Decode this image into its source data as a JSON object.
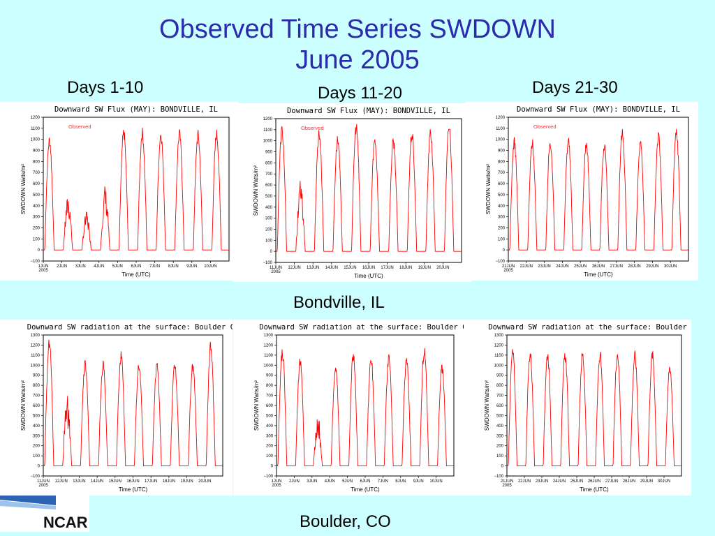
{
  "slide": {
    "title_line1": "Observed Time Series SWDOWN",
    "title_line2": "June 2005",
    "col_labels": [
      "Days 1-10",
      "Days 11-20",
      "Days 21-30"
    ],
    "site_bondville": "Bondville, IL",
    "site_boulder": "Boulder, CO",
    "logo_text": "NCAR",
    "colors": {
      "title": "#2b2bab",
      "background": "#ccffff",
      "series": "#ff0000"
    }
  },
  "chart_data": [
    {
      "type": "line",
      "title": "Downward SW Flux (MAY): BONDVILLE, IL",
      "xlabel": "Time (UTC)",
      "ylabel": "SWDOWN  Watts/m²",
      "legend": "Observed",
      "x": [
        "1JUN\n2005",
        "2JUN",
        "3JUN",
        "4JUN",
        "5JUN",
        "6JUN",
        "7JUN",
        "8JUN",
        "9JUN",
        "10JUN"
      ],
      "ylim": [
        -100,
        1200
      ],
      "yticks": [
        -100,
        0,
        100,
        200,
        300,
        400,
        500,
        600,
        700,
        800,
        900,
        1000,
        1100,
        1200
      ],
      "daily_peaks": [
        1040,
        540,
        380,
        640,
        1110,
        1110,
        1100,
        1100,
        1090,
        1100
      ]
    },
    {
      "type": "line",
      "title": "Downward SW Flux (MAY): BONDVILLE, IL",
      "xlabel": "Time (UTC)",
      "ylabel": "SWDOWN  Watts/m²",
      "legend": "Observed",
      "x": [
        "11JUN\n2005",
        "12JUN",
        "13JUN",
        "14JUN",
        "15JUN",
        "16JUN",
        "17JUN",
        "18JUN",
        "19JUN",
        "20JUN"
      ],
      "ylim": [
        -100,
        1200
      ],
      "yticks": [
        -100,
        0,
        100,
        200,
        300,
        400,
        500,
        600,
        700,
        800,
        900,
        1000,
        1100,
        1200
      ],
      "daily_peaks": [
        1150,
        700,
        1120,
        1060,
        1180,
        1050,
        1040,
        1110,
        1120,
        1180
      ]
    },
    {
      "type": "line",
      "title": "Downward SW Flux (MAY): BONDVILLE, IL",
      "xlabel": "Time (UTC)",
      "ylabel": "SWDOWN  Watts/m²",
      "legend": "Observed",
      "x": [
        "21JUN\n2005",
        "22JUN",
        "23JUN",
        "24JUN",
        "25JUN",
        "26JUN",
        "27JUN",
        "28JUN",
        "29JUN",
        "30JUN"
      ],
      "ylim": [
        -100,
        1200
      ],
      "yticks": [
        -100,
        0,
        100,
        200,
        300,
        400,
        500,
        600,
        700,
        800,
        900,
        1000,
        1100,
        1200
      ],
      "daily_peaks": [
        1020,
        1020,
        1030,
        1040,
        1020,
        1000,
        1110,
        1000,
        1080,
        1120
      ]
    },
    {
      "type": "line",
      "title": "Downward SW radiation at the surface: Boulder CO",
      "xlabel": "Time (UTC)",
      "ylabel": "SWDOWN  Watts/m²",
      "legend": "",
      "x": [
        "11JUN\n2005",
        "12JUN",
        "13JUN",
        "14JUN",
        "15JUN",
        "16JUN",
        "17JUN",
        "18JUN",
        "19JUN",
        "20JUN"
      ],
      "ylim": [
        -100,
        1300
      ],
      "yticks": [
        -100,
        0,
        100,
        200,
        300,
        400,
        500,
        600,
        700,
        800,
        900,
        1000,
        1100,
        1200,
        1300
      ],
      "daily_peaks": [
        1280,
        750,
        1070,
        1050,
        1150,
        1050,
        1040,
        1040,
        1040,
        1240
      ]
    },
    {
      "type": "line",
      "title": "Downward SW radiation at the surface: Boulder CO",
      "xlabel": "Time (UTC)",
      "ylabel": "SWDOWN  Watts/m²",
      "legend": "",
      "x": [
        "1JUN\n2005",
        "2JUN",
        "3JUN",
        "4JUN",
        "5JUN",
        "6JUN",
        "7JUN",
        "8JUN",
        "9JUN",
        "10JUN"
      ],
      "ylim": [
        -100,
        1300
      ],
      "yticks": [
        -100,
        0,
        100,
        200,
        300,
        400,
        500,
        600,
        700,
        800,
        900,
        1000,
        1100,
        1200,
        1300
      ],
      "daily_peaks": [
        1180,
        1090,
        540,
        1010,
        1150,
        1120,
        1120,
        1100,
        1200,
        1030
      ]
    },
    {
      "type": "line",
      "title": "Downward SW radiation at the surface: Boulder CO",
      "xlabel": "Time (UTC)",
      "ylabel": "SWDOWN  Watts/m²",
      "legend": "",
      "x": [
        "21JUN\n2005",
        "22JUN",
        "23JUN",
        "24JUN",
        "25JUN",
        "26JUN",
        "27JUN",
        "28JUN",
        "29JUN",
        "30JUN"
      ],
      "ylim": [
        -100,
        1300
      ],
      "yticks": [
        -100,
        0,
        100,
        200,
        300,
        400,
        500,
        600,
        700,
        800,
        900,
        1000,
        1100,
        1200,
        1300
      ],
      "daily_peaks": [
        1180,
        1170,
        1160,
        1150,
        1160,
        1150,
        1170,
        1150,
        1160,
        1030
      ]
    }
  ]
}
